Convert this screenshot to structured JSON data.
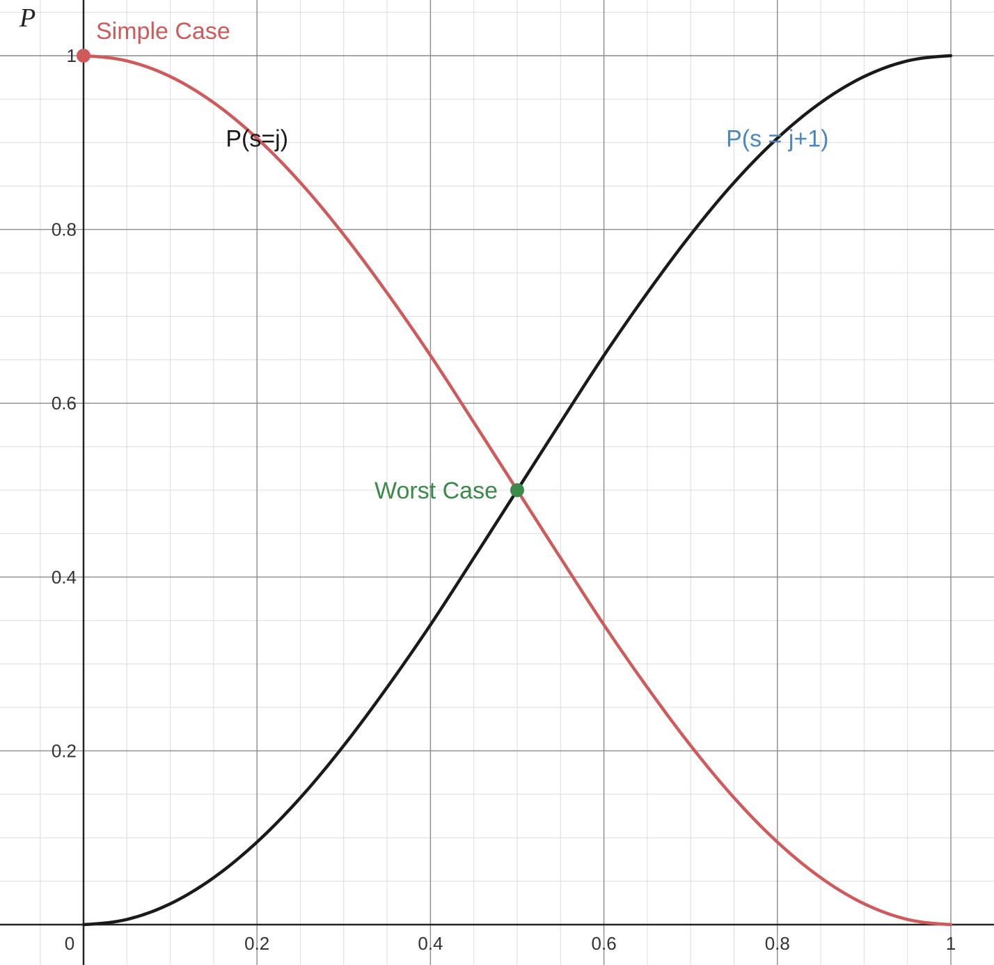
{
  "chart_data": {
    "type": "line",
    "title": "",
    "xlabel": "",
    "ylabel": "P",
    "xlim": [
      0,
      1
    ],
    "ylim": [
      0,
      1
    ],
    "grid": true,
    "x_ticks": [
      "0",
      "0.2",
      "0.4",
      "0.6",
      "0.8",
      "1"
    ],
    "y_ticks": [
      "0.2",
      "0.4",
      "0.6",
      "0.8",
      "1"
    ],
    "series": [
      {
        "name": "P(s=j)",
        "color": "#d05a5a",
        "x": [
          0,
          0.05,
          0.1,
          0.15,
          0.2,
          0.25,
          0.3,
          0.35,
          0.4,
          0.45,
          0.5,
          0.55,
          0.6,
          0.65,
          0.7,
          0.75,
          0.8,
          0.85,
          0.9,
          0.95,
          1
        ],
        "values": [
          1,
          0.994,
          0.976,
          0.946,
          0.905,
          0.854,
          0.794,
          0.727,
          0.655,
          0.578,
          0.5,
          0.422,
          0.345,
          0.273,
          0.206,
          0.146,
          0.095,
          0.054,
          0.024,
          0.006,
          0
        ]
      },
      {
        "name": "P(s = j+1)",
        "color": "#1a1a1a",
        "x": [
          0,
          0.05,
          0.1,
          0.15,
          0.2,
          0.25,
          0.3,
          0.35,
          0.4,
          0.45,
          0.5,
          0.55,
          0.6,
          0.65,
          0.7,
          0.75,
          0.8,
          0.85,
          0.9,
          0.95,
          1
        ],
        "values": [
          0,
          0.006,
          0.024,
          0.054,
          0.095,
          0.146,
          0.206,
          0.273,
          0.345,
          0.422,
          0.5,
          0.578,
          0.655,
          0.727,
          0.794,
          0.854,
          0.905,
          0.946,
          0.976,
          0.994,
          1
        ]
      }
    ],
    "points": [
      {
        "name": "Simple Case",
        "x": 0,
        "y": 1,
        "color": "#d05a5a"
      },
      {
        "name": "Worst Case",
        "x": 0.5,
        "y": 0.5,
        "color": "#3a8a4a"
      }
    ],
    "curve_labels": [
      {
        "text": "P(s=j)",
        "x": 0.2,
        "y": 0.905,
        "color": "#1a1a1a"
      },
      {
        "text": "P(s = j+1)",
        "x": 0.8,
        "y": 0.905,
        "color": "#4a86c0"
      }
    ]
  }
}
